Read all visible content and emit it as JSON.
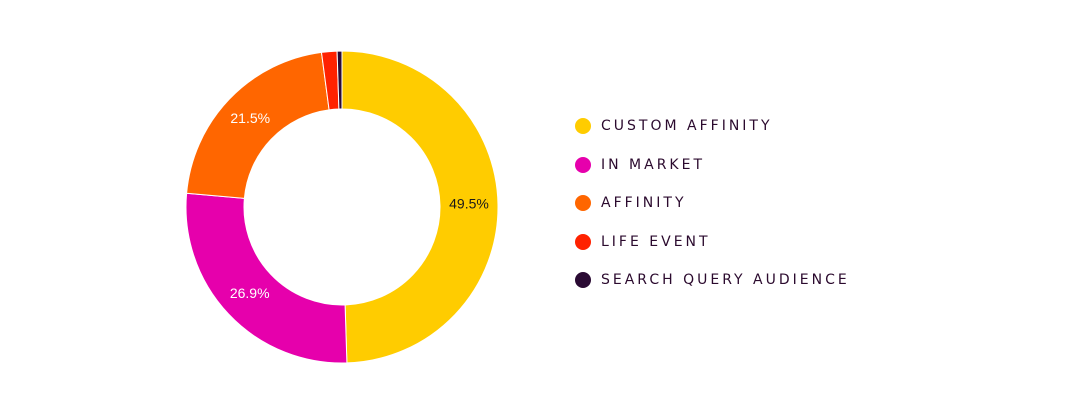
{
  "chart_data": {
    "type": "pie",
    "donut": true,
    "legend_position": "right",
    "series": [
      {
        "name": "CUSTOM AFFINITY",
        "value": 49.5,
        "label": "49.5%",
        "color": "#FFCC00",
        "label_color": "#1a1a1a"
      },
      {
        "name": "IN MARKET",
        "value": 26.9,
        "label": "26.9%",
        "color": "#E600AC",
        "label_color": "#ffffff"
      },
      {
        "name": "AFFINITY",
        "value": 21.5,
        "label": "21.5%",
        "color": "#FF6600",
        "label_color": "#ffffff"
      },
      {
        "name": "LIFE EVENT",
        "value": 1.6,
        "label": "",
        "color": "#FF2200",
        "label_color": "#ffffff"
      },
      {
        "name": "SEARCH QUERY AUDIENCE",
        "value": 0.5,
        "label": "",
        "color": "#2A0A33",
        "label_color": "#ffffff"
      }
    ]
  }
}
